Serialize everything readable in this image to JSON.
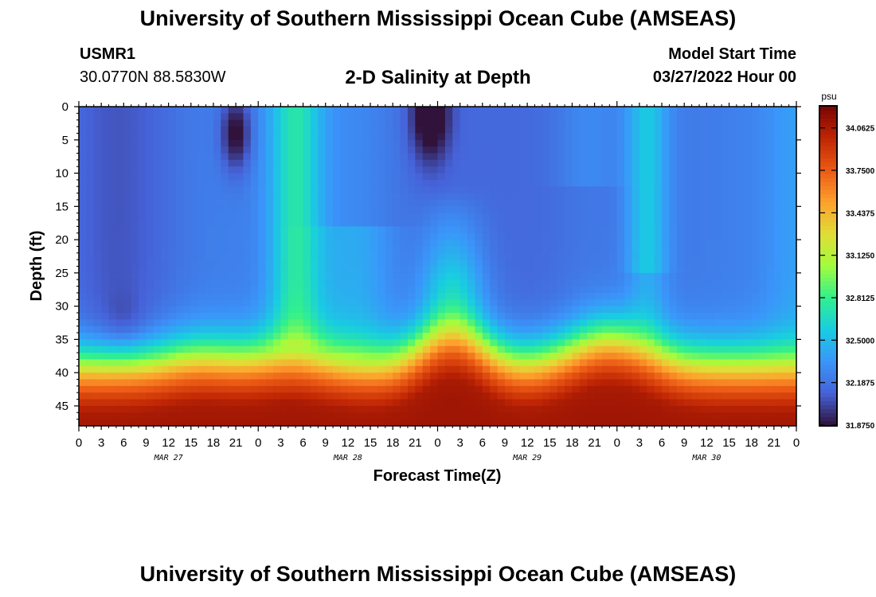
{
  "header": {
    "title": "University of Southern Mississippi Ocean Cube (AMSEAS)",
    "station": "USMR1",
    "coords": "30.0770N  88.5830W",
    "subtitle": "2-D Salinity at Depth",
    "start_label": "Model Start Time",
    "start_value": "03/27/2022 Hour 00"
  },
  "footer": {
    "title": "University of Southern Mississippi Ocean Cube (AMSEAS)"
  },
  "chart_data": {
    "type": "heatmap",
    "xlabel": "Forecast Time(Z)",
    "ylabel": "Depth (ft)",
    "x_ticks": [
      "0",
      "3",
      "6",
      "9",
      "12",
      "15",
      "18",
      "21",
      "0",
      "3",
      "6",
      "9",
      "12",
      "15",
      "18",
      "21",
      "0",
      "3",
      "6",
      "9",
      "12",
      "15",
      "18",
      "21",
      "0",
      "3",
      "6",
      "9",
      "12",
      "15",
      "18",
      "21",
      "0"
    ],
    "x_range_hours": [
      0,
      96
    ],
    "date_labels": [
      {
        "label": "MAR 27",
        "hour": 12
      },
      {
        "label": "MAR 28",
        "hour": 36
      },
      {
        "label": "MAR 29",
        "hour": 60
      },
      {
        "label": "MAR 30",
        "hour": 84
      }
    ],
    "y_ticks": [
      0,
      5,
      10,
      15,
      20,
      25,
      30,
      35,
      40,
      45
    ],
    "y_range": [
      0,
      48
    ],
    "y_inverted": true,
    "colorbar": {
      "unit": "psu",
      "min": 31.875,
      "max": 34.2188,
      "ticks": [
        "34.0625",
        "33.7500",
        "33.4375",
        "33.1250",
        "32.8125",
        "32.5000",
        "32.1875",
        "31.8750"
      ]
    },
    "features": [
      {
        "kind": "fresh-core",
        "hour": 21,
        "depth": 4,
        "value": 31.95
      },
      {
        "kind": "fresh-core",
        "hour": 46,
        "depth": 1,
        "value": 31.9
      },
      {
        "kind": "fresh-layer",
        "hour": 6,
        "depth": 20,
        "value": 32.1
      },
      {
        "kind": "salty-bottom",
        "hour_range": [
          0,
          96
        ],
        "depth": 46,
        "value": 34.1
      }
    ]
  }
}
